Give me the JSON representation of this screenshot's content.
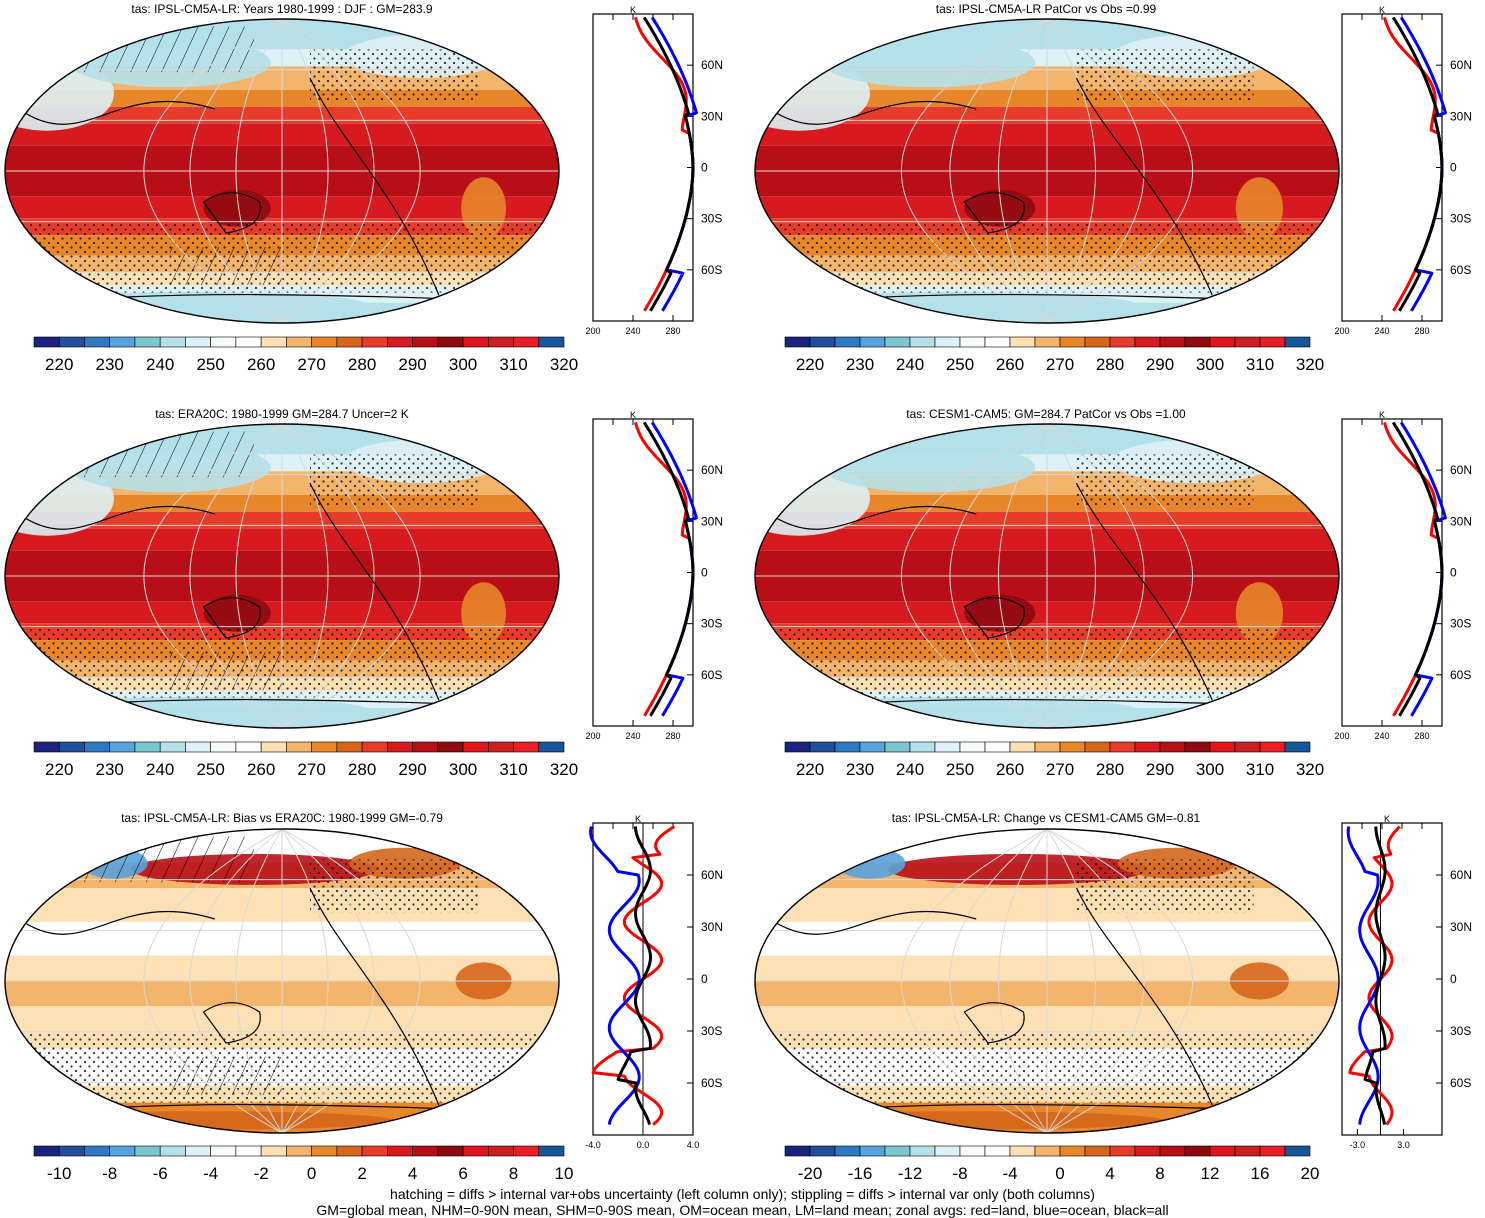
{
  "panels": [
    {
      "title": "tas: IPSL-CM5A-LR: Years 1980-1999 : DJF : GM=283.9",
      "kind": "abs",
      "hatch": true,
      "zonal_unit": "K",
      "zonal_xticks": [
        "200",
        "240",
        "280"
      ],
      "zonal_xrange": [
        200,
        300
      ],
      "lat_labels": [
        "60N",
        "30N",
        "0",
        "30S",
        "60S"
      ],
      "colorbar_labels": [
        "220",
        "230",
        "240",
        "250",
        "260",
        "270",
        "280",
        "290",
        "300",
        "310",
        "320"
      ]
    },
    {
      "title": "tas: IPSL-CM5A-LR PatCor vs Obs =0.99",
      "kind": "abs",
      "hatch": false,
      "zonal_unit": "K",
      "zonal_xticks": [
        "200",
        "240",
        "280"
      ],
      "zonal_xrange": [
        200,
        300
      ],
      "lat_labels": [
        "60N",
        "30N",
        "0",
        "30S",
        "60S"
      ],
      "colorbar_labels": [
        "220",
        "230",
        "240",
        "250",
        "260",
        "270",
        "280",
        "290",
        "300",
        "310",
        "320"
      ]
    },
    {
      "title": "tas: ERA20C: 1980-1999 GM=284.7 Uncer=2 K",
      "kind": "abs",
      "hatch": true,
      "zonal_unit": "K",
      "zonal_xticks": [
        "200",
        "240",
        "280"
      ],
      "zonal_xrange": [
        200,
        300
      ],
      "lat_labels": [
        "60N",
        "30N",
        "0",
        "30S",
        "60S"
      ],
      "colorbar_labels": [
        "220",
        "230",
        "240",
        "250",
        "260",
        "270",
        "280",
        "290",
        "300",
        "310",
        "320"
      ]
    },
    {
      "title": "tas: CESM1-CAM5: GM=284.7 PatCor vs Obs =1.00",
      "kind": "abs",
      "hatch": false,
      "zonal_unit": "K",
      "zonal_xticks": [
        "200",
        "240",
        "280"
      ],
      "zonal_xrange": [
        200,
        300
      ],
      "lat_labels": [
        "60N",
        "30N",
        "0",
        "30S",
        "60S"
      ],
      "colorbar_labels": [
        "220",
        "230",
        "240",
        "250",
        "260",
        "270",
        "280",
        "290",
        "300",
        "310",
        "320"
      ]
    },
    {
      "title": "tas: IPSL-CM5A-LR: Bias vs ERA20C: 1980-1999 GM=-0.79",
      "kind": "diff",
      "hatch": true,
      "zonal_unit": "K",
      "zonal_xticks": [
        "-4.0",
        "0.0",
        "4.0"
      ],
      "zonal_xrange": [
        -4,
        4
      ],
      "lat_labels": [
        "60N",
        "30N",
        "0",
        "30S",
        "60S"
      ],
      "colorbar_labels": [
        "-10",
        "-8",
        "-6",
        "-4",
        "-2",
        "0",
        "2",
        "4",
        "6",
        "8",
        "10"
      ]
    },
    {
      "title": "tas: IPSL-CM5A-LR: Change vs CESM1-CAM5 GM=-0.81",
      "kind": "diff",
      "hatch": false,
      "zonal_unit": "K",
      "zonal_xticks": [
        "-3.0",
        "3.0"
      ],
      "zonal_xrange": [
        -5,
        8
      ],
      "lat_labels": [
        "60N",
        "30N",
        "0",
        "30S",
        "60S"
      ],
      "colorbar_labels": [
        "-20",
        "-16",
        "-12",
        "-8",
        "-4",
        "0",
        "4",
        "8",
        "12",
        "16",
        "20"
      ]
    }
  ],
  "colormap": [
    "#1a237e",
    "#1f4e9a",
    "#2f78c4",
    "#5aa2dc",
    "#7cc6d0",
    "#b4e0ea",
    "#ddf1f6",
    "#f7fbfc",
    "#ffffff",
    "#fde0b3",
    "#f3b56c",
    "#e8862a",
    "#d5661c",
    "#e83c2a",
    "#d71920",
    "#b80f17",
    "#8d0a10",
    "#e0141c",
    "#cc1f24",
    "#e81f27",
    "#17569a"
  ],
  "zonal_colors": {
    "land": "#ff0000",
    "ocean": "#0000ff",
    "all": "#000000"
  },
  "footnote": {
    "line1": "hatching = diffs > internal var+obs uncertainty (left column only); stippling = diffs > internal var only (both columns)",
    "line2": "GM=global mean, NHM=0-90N mean, SHM=0-90S mean, OM=ocean mean, LM=land mean; zonal avgs: red=land, blue=ocean, black=all"
  }
}
